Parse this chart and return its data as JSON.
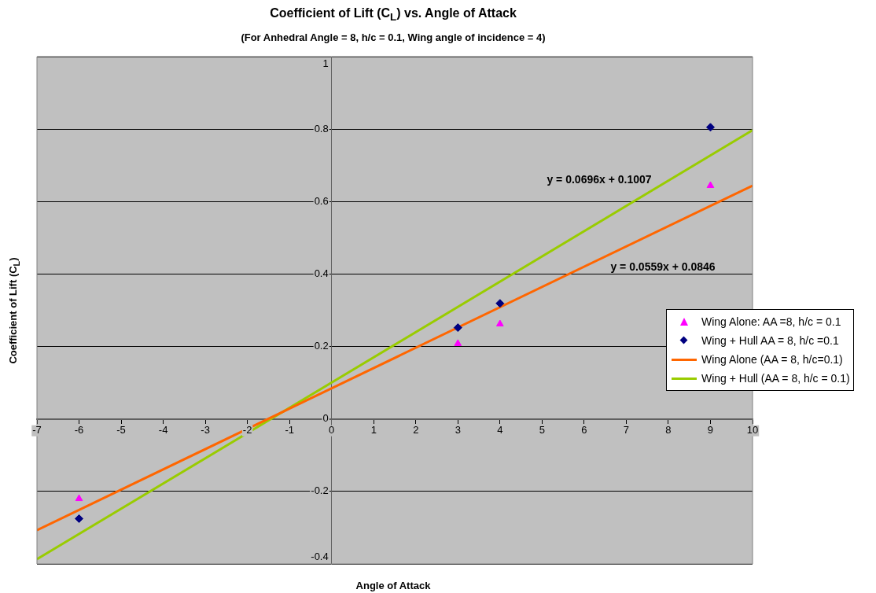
{
  "chart_data": {
    "type": "scatter",
    "title": "Coefficient of Lift (C$_{L}$) vs. Angle of Attack",
    "subtitle": "(For Anhedral Angle = 8, h/c = 0.1, Wing angle of incidence = 4)",
    "xlabel": "Angle of Attack",
    "ylabel": "Coefficient of Lift (C$_{L}$)",
    "xlim": [
      -7,
      10
    ],
    "xticks": [
      -7,
      -6,
      -5,
      -4,
      -3,
      -2,
      -1,
      0,
      1,
      2,
      3,
      4,
      5,
      6,
      7,
      8,
      9,
      10
    ],
    "ylim": [
      -0.4,
      1
    ],
    "yticks": [
      -0.4,
      -0.2,
      0,
      0.2,
      0.4,
      0.6,
      0.8,
      1
    ],
    "grid": "y",
    "legend": "right",
    "series": [
      {
        "name": "Wing Alone: AA =8, h/c = 0.1",
        "type": "scatter",
        "marker": "triangle",
        "color": "#ff00ff",
        "x": [
          -6,
          3,
          4,
          9
        ],
        "values": [
          -0.22,
          0.208,
          0.262,
          0.644
        ]
      },
      {
        "name": "Wing + Hull AA = 8, h/c =0.1",
        "type": "scatter",
        "marker": "diamond",
        "color": "#000080",
        "x": [
          -6,
          3,
          4,
          9
        ],
        "values": [
          -0.275,
          0.252,
          0.319,
          0.805
        ]
      },
      {
        "name": "Wing Alone (AA = 8, h/c=0.1)",
        "type": "line",
        "marker": "none",
        "color": "#ff6600",
        "x": [
          -7,
          10
        ],
        "values": [
          -0.307,
          0.644
        ]
      },
      {
        "name": "Wing + Hull (AA = 8, h/c = 0.1)",
        "type": "line",
        "marker": "none",
        "color": "#99cc00",
        "x": [
          -7,
          10
        ],
        "values": [
          -0.387,
          0.797
        ]
      }
    ],
    "annotations": [
      "y = 0.0696x + 0.1007",
      "y = 0.0559x + 0.0846"
    ]
  }
}
